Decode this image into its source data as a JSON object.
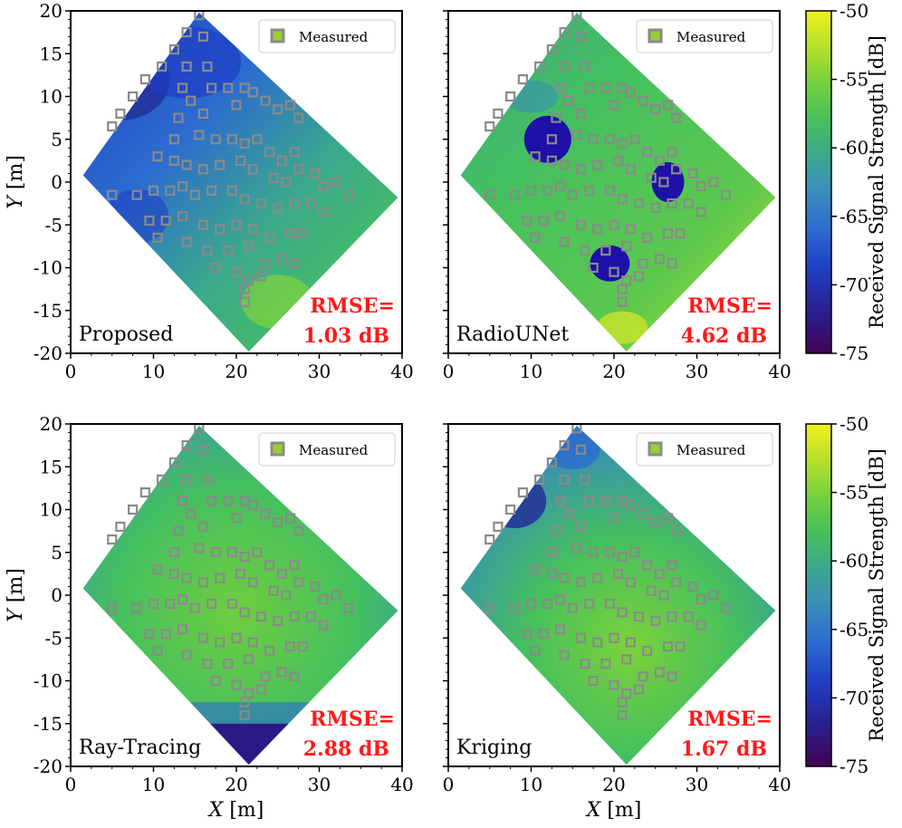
{
  "chart_data": [
    {
      "type": "heatmap",
      "panel": "Proposed",
      "label": "Proposed",
      "rmse_line1": "RMSE=",
      "rmse_line2": "1.03 dB",
      "legend": "Measured",
      "ylabel_var": "Y",
      "ylabel_unit": "[m]",
      "xlim": [
        0,
        40
      ],
      "ylim": [
        -20,
        20
      ],
      "xticks": [
        "0",
        "10",
        "20",
        "30",
        "40"
      ],
      "yticks": [
        "20",
        "15",
        "10",
        "5",
        "0",
        "-5",
        "-10",
        "-15",
        "-20"
      ],
      "style": "proposed"
    },
    {
      "type": "heatmap",
      "panel": "RadioUNet",
      "label": "RadioUNet",
      "rmse_line1": "RMSE=",
      "rmse_line2": "4.62 dB",
      "legend": "Measured",
      "xlim": [
        0,
        40
      ],
      "ylim": [
        -20,
        20
      ],
      "xticks": [
        "0",
        "10",
        "20",
        "30",
        "40"
      ],
      "style": "radiounet"
    },
    {
      "type": "heatmap",
      "panel": "Ray-Tracing",
      "label": "Ray-Tracing",
      "rmse_line1": "RMSE=",
      "rmse_line2": "2.88 dB",
      "legend": "Measured",
      "ylabel_var": "Y",
      "ylabel_unit": "[m]",
      "xlabel_var": "X",
      "xlabel_unit": "[m]",
      "xlim": [
        0,
        40
      ],
      "ylim": [
        -20,
        20
      ],
      "xticks": [
        "0",
        "10",
        "20",
        "30",
        "40"
      ],
      "yticks": [
        "20",
        "15",
        "10",
        "5",
        "0",
        "-5",
        "-10",
        "-15",
        "-20"
      ],
      "style": "raytracing"
    },
    {
      "type": "heatmap",
      "panel": "Kriging",
      "label": "Kriging",
      "rmse_line1": "RMSE=",
      "rmse_line2": "1.67 dB",
      "legend": "Measured",
      "xlabel_var": "X",
      "xlabel_unit": "[m]",
      "xlim": [
        0,
        40
      ],
      "ylim": [
        -20,
        20
      ],
      "xticks": [
        "0",
        "10",
        "20",
        "30",
        "40"
      ],
      "style": "kriging"
    }
  ],
  "colorbar": {
    "label": "Received Signal Strength [dB]",
    "range": [
      -75,
      -50
    ],
    "ticks": [
      "-50",
      "-55",
      "-60",
      "-65",
      "-70",
      "-75"
    ],
    "colormap": [
      "#440154",
      "#2a1f8f",
      "#1f3fc4",
      "#2c6bd0",
      "#3b8fb8",
      "#3aa88d",
      "#45c05e",
      "#7cd23a",
      "#b9e02a",
      "#f0f21c"
    ]
  },
  "region": {
    "corners": [
      [
        1.5,
        0.8
      ],
      [
        15.5,
        19.8
      ],
      [
        39.5,
        -1.8
      ],
      [
        21.5,
        -19.8
      ]
    ]
  },
  "measured_points": [
    [
      15.5,
      19.5
    ],
    [
      14,
      17.5
    ],
    [
      12.5,
      15.5
    ],
    [
      11,
      13.5
    ],
    [
      9,
      12
    ],
    [
      7.5,
      10
    ],
    [
      6,
      8
    ],
    [
      5,
      6.5
    ],
    [
      16,
      17
    ],
    [
      16.5,
      13.5
    ],
    [
      17,
      11
    ],
    [
      19,
      11
    ],
    [
      20,
      9
    ],
    [
      21,
      11
    ],
    [
      22,
      10.5
    ],
    [
      23.5,
      9.5
    ],
    [
      25,
      8.5
    ],
    [
      26.5,
      9
    ],
    [
      27.5,
      7.5
    ],
    [
      14,
      13.5
    ],
    [
      13.5,
      11
    ],
    [
      14.5,
      9.5
    ],
    [
      16,
      8
    ],
    [
      13,
      7.5
    ],
    [
      12.5,
      5
    ],
    [
      15.5,
      5.5
    ],
    [
      17.5,
      5
    ],
    [
      19.5,
      5
    ],
    [
      21,
      4.5
    ],
    [
      22.5,
      5
    ],
    [
      24,
      3.5
    ],
    [
      25.5,
      2.5
    ],
    [
      27,
      3.5
    ],
    [
      10.5,
      3
    ],
    [
      12.5,
      2.5
    ],
    [
      14,
      2
    ],
    [
      16,
      1.5
    ],
    [
      18,
      2
    ],
    [
      20.5,
      2.5
    ],
    [
      22,
      1.5
    ],
    [
      24.5,
      0.5
    ],
    [
      26,
      0
    ],
    [
      27.5,
      1.5
    ],
    [
      29.5,
      1
    ],
    [
      30.5,
      -0.5
    ],
    [
      32,
      0
    ],
    [
      33.5,
      -1.5
    ],
    [
      8,
      -1.5
    ],
    [
      10,
      -1
    ],
    [
      12,
      -1
    ],
    [
      13.5,
      -0.5
    ],
    [
      15,
      -1.5
    ],
    [
      17,
      -1
    ],
    [
      19.5,
      -1
    ],
    [
      21,
      -2
    ],
    [
      23,
      -2.5
    ],
    [
      25,
      -3
    ],
    [
      27,
      -2.5
    ],
    [
      29,
      -2.5
    ],
    [
      30.5,
      -3.5
    ],
    [
      9.5,
      -4.5
    ],
    [
      11.5,
      -4.5
    ],
    [
      13.5,
      -4
    ],
    [
      16,
      -5
    ],
    [
      18,
      -5.5
    ],
    [
      20,
      -5
    ],
    [
      22,
      -5.5
    ],
    [
      24,
      -6.5
    ],
    [
      26.5,
      -6
    ],
    [
      28,
      -6
    ],
    [
      10.5,
      -6.5
    ],
    [
      14,
      -7
    ],
    [
      16.5,
      -8
    ],
    [
      19,
      -8
    ],
    [
      21.5,
      -7.5
    ],
    [
      23.5,
      -9.5
    ],
    [
      25.5,
      -9
    ],
    [
      27,
      -9.5
    ],
    [
      17.5,
      -10
    ],
    [
      20,
      -10.5
    ],
    [
      21.5,
      -11.5
    ],
    [
      23,
      -11
    ],
    [
      21,
      -12.5
    ],
    [
      21,
      -14
    ],
    [
      5,
      -1.5
    ]
  ]
}
